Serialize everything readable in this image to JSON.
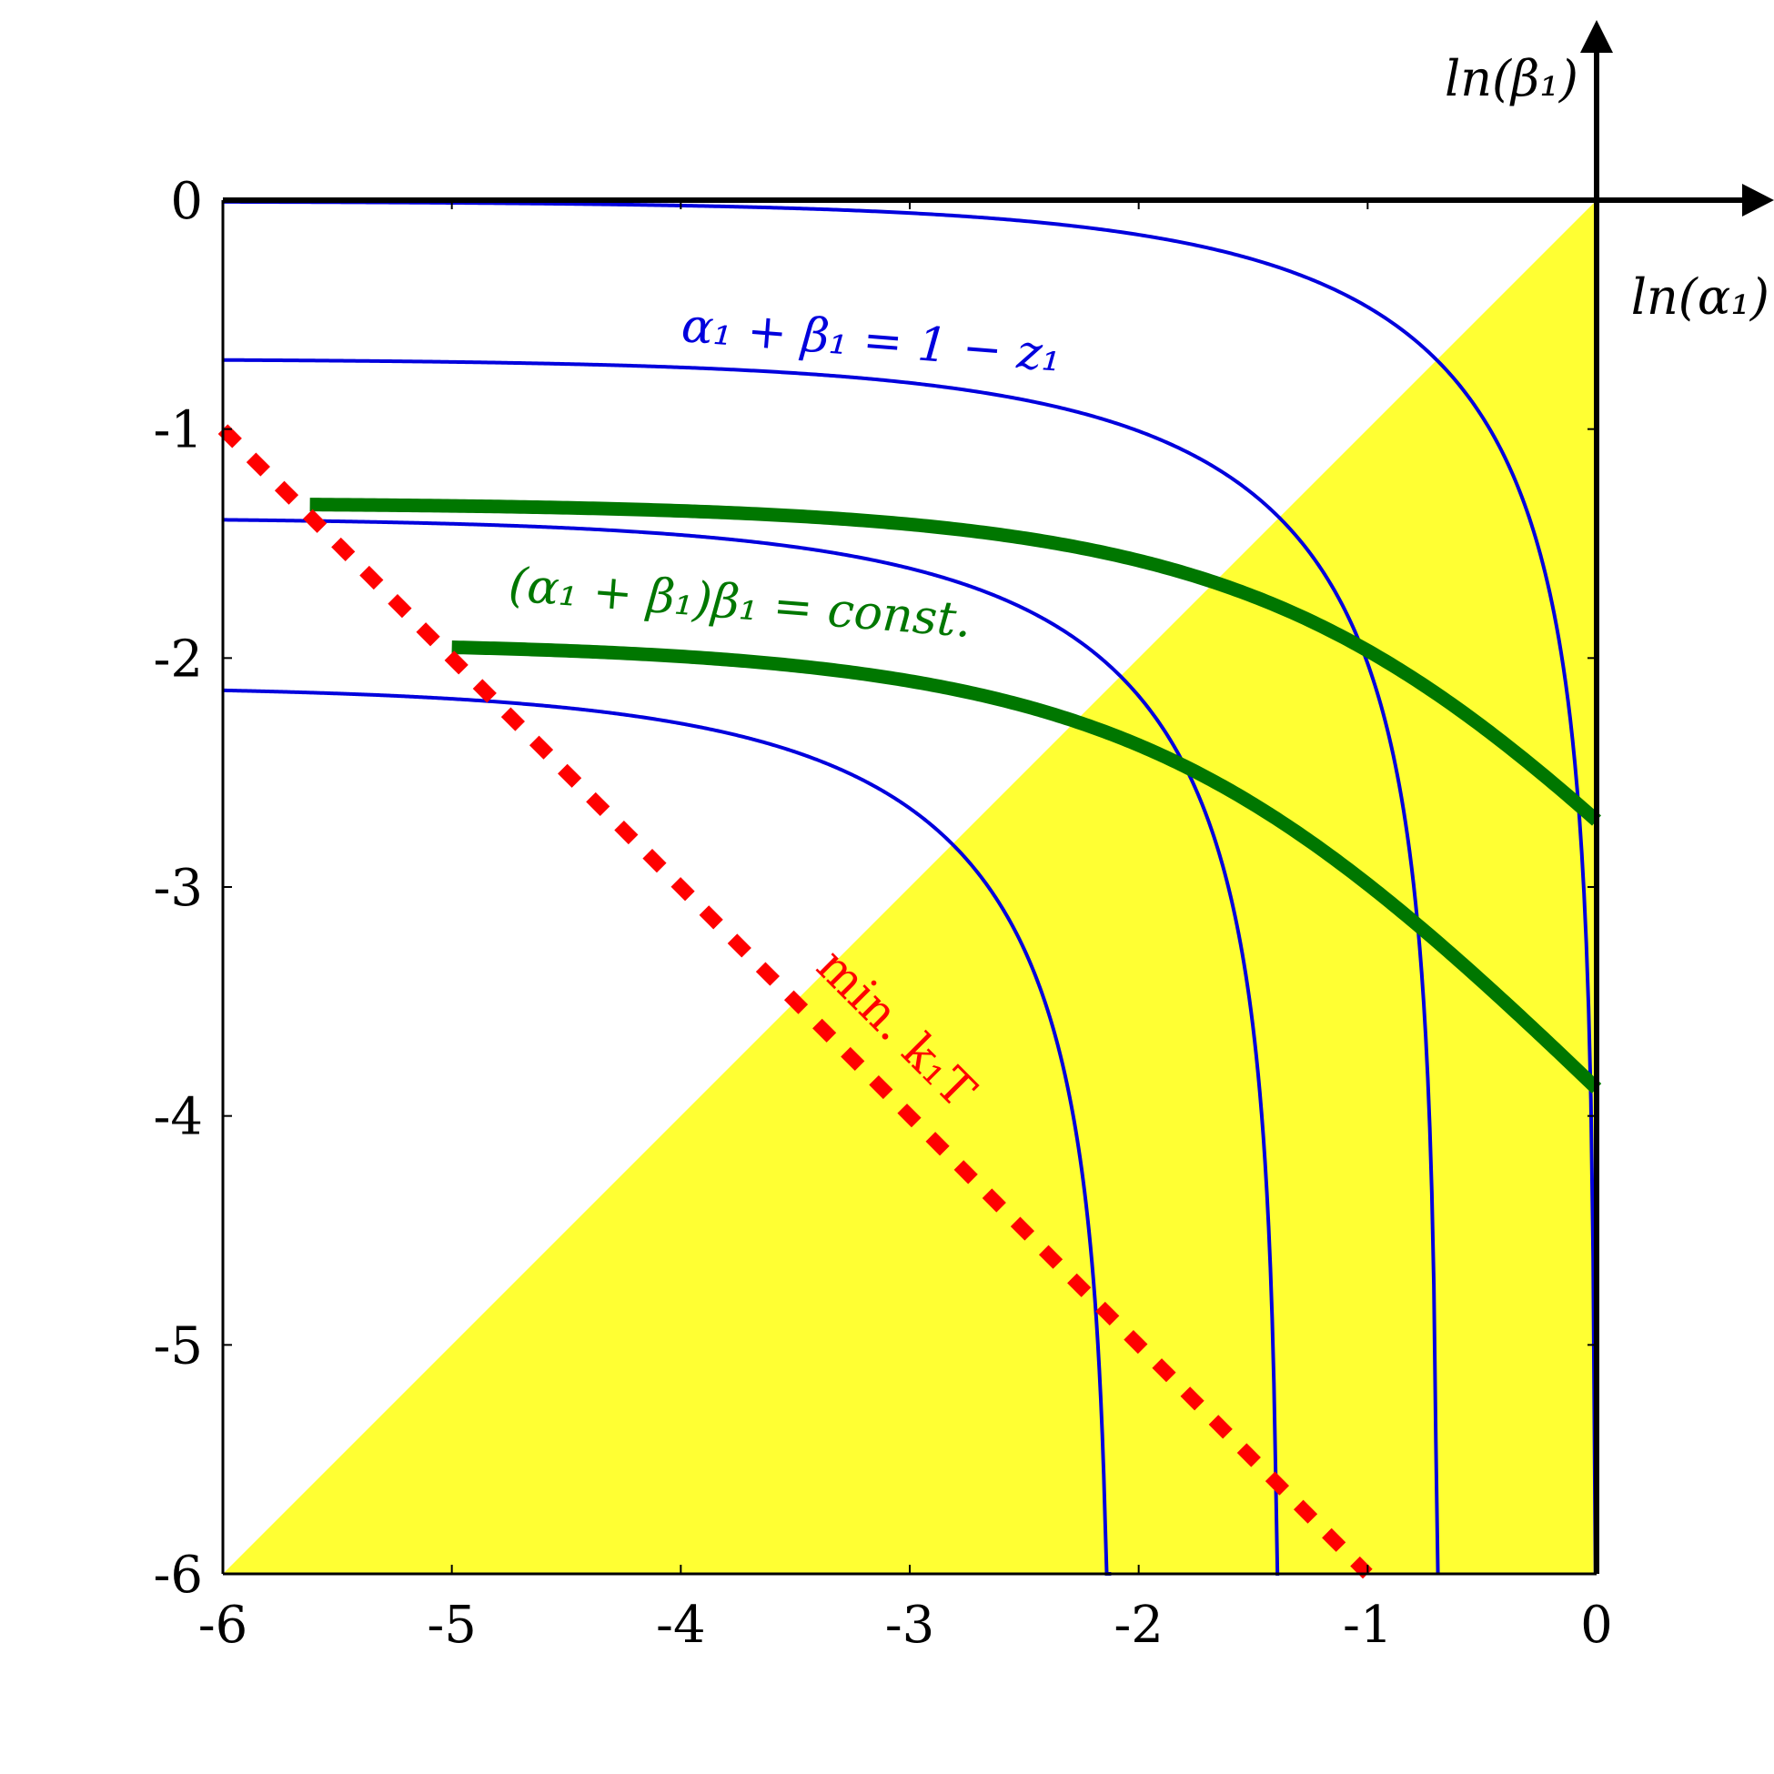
{
  "chart_data": {
    "type": "line",
    "title": "",
    "xlabel": "ln(α₁)",
    "ylabel": "ln(β₁)",
    "xlim": [
      -6,
      0
    ],
    "ylim": [
      -6,
      0
    ],
    "xticks": [
      -6,
      -5,
      -4,
      -3,
      -2,
      -1,
      0
    ],
    "yticks": [
      0,
      -1,
      -2,
      -3,
      -4,
      -5,
      -6
    ],
    "xtick_labels": [
      "-6",
      "-5",
      "-4",
      "-3",
      "-2",
      "-1",
      "0"
    ],
    "ytick_labels": [
      "0",
      "-1",
      "-2",
      "-3",
      "-4",
      "-5",
      "-6"
    ],
    "region": {
      "name": "yellow region",
      "color": "#ffff33",
      "polygon": [
        [
          -6,
          -6
        ],
        [
          0,
          0
        ],
        [
          0,
          -6
        ]
      ]
    },
    "series": [
      {
        "group": "blue",
        "label_shared": "α₁ + β₁ = 1 − z₁",
        "color": "#0000dd",
        "family": "alpha+beta=1-z",
        "curves": [
          {
            "c": 0.005
          },
          {
            "c": 0.5
          },
          {
            "c": 0.75
          },
          {
            "c": 0.88
          }
        ]
      },
      {
        "group": "green",
        "label_shared": "(α₁ + β₁)β₁ = const.",
        "color": "#007700",
        "family": "(alpha+beta)*beta=K",
        "curves": [
          {
            "x_start": -5.62,
            "y_at_start": -1.32,
            "y_at_0": -2.71
          },
          {
            "x_start": -5.0,
            "y_at_start": -1.95,
            "y_at_0": -3.88
          }
        ]
      },
      {
        "group": "red",
        "label": "min. k₁T",
        "color": "#ff0000",
        "style": "dashed",
        "points": [
          [
            -6,
            -1
          ],
          [
            -1,
            -6
          ]
        ]
      }
    ],
    "annotations": [
      {
        "text": "α₁ + β₁ = 1 − z₁",
        "color": "#0000dd"
      },
      {
        "text": "(α₁ + β₁)β₁ = const.",
        "color": "#007700"
      },
      {
        "text": "min. k₁T",
        "color": "#ff0000"
      }
    ]
  }
}
